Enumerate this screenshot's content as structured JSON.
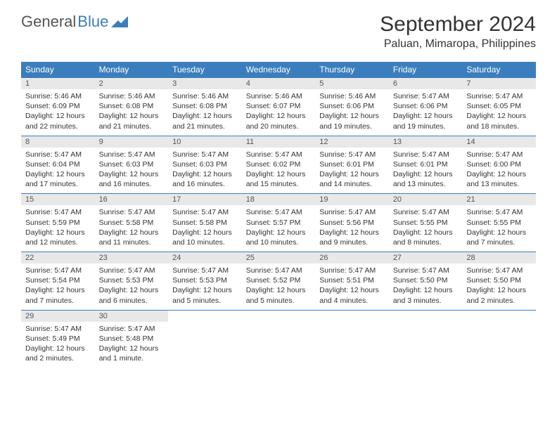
{
  "logo": {
    "text1": "General",
    "text2": "Blue"
  },
  "title": "September 2024",
  "location": "Paluan, Mimaropa, Philippines",
  "colors": {
    "header_bg": "#3b7ebd",
    "header_text": "#ffffff",
    "daynum_bg": "#e8e8e8",
    "text": "#333333",
    "border": "#3b7ebd"
  },
  "weekdays": [
    "Sunday",
    "Monday",
    "Tuesday",
    "Wednesday",
    "Thursday",
    "Friday",
    "Saturday"
  ],
  "weeks": [
    [
      {
        "n": "1",
        "sr": "Sunrise: 5:46 AM",
        "ss": "Sunset: 6:09 PM",
        "d1": "Daylight: 12 hours",
        "d2": "and 22 minutes."
      },
      {
        "n": "2",
        "sr": "Sunrise: 5:46 AM",
        "ss": "Sunset: 6:08 PM",
        "d1": "Daylight: 12 hours",
        "d2": "and 21 minutes."
      },
      {
        "n": "3",
        "sr": "Sunrise: 5:46 AM",
        "ss": "Sunset: 6:08 PM",
        "d1": "Daylight: 12 hours",
        "d2": "and 21 minutes."
      },
      {
        "n": "4",
        "sr": "Sunrise: 5:46 AM",
        "ss": "Sunset: 6:07 PM",
        "d1": "Daylight: 12 hours",
        "d2": "and 20 minutes."
      },
      {
        "n": "5",
        "sr": "Sunrise: 5:46 AM",
        "ss": "Sunset: 6:06 PM",
        "d1": "Daylight: 12 hours",
        "d2": "and 19 minutes."
      },
      {
        "n": "6",
        "sr": "Sunrise: 5:47 AM",
        "ss": "Sunset: 6:06 PM",
        "d1": "Daylight: 12 hours",
        "d2": "and 19 minutes."
      },
      {
        "n": "7",
        "sr": "Sunrise: 5:47 AM",
        "ss": "Sunset: 6:05 PM",
        "d1": "Daylight: 12 hours",
        "d2": "and 18 minutes."
      }
    ],
    [
      {
        "n": "8",
        "sr": "Sunrise: 5:47 AM",
        "ss": "Sunset: 6:04 PM",
        "d1": "Daylight: 12 hours",
        "d2": "and 17 minutes."
      },
      {
        "n": "9",
        "sr": "Sunrise: 5:47 AM",
        "ss": "Sunset: 6:03 PM",
        "d1": "Daylight: 12 hours",
        "d2": "and 16 minutes."
      },
      {
        "n": "10",
        "sr": "Sunrise: 5:47 AM",
        "ss": "Sunset: 6:03 PM",
        "d1": "Daylight: 12 hours",
        "d2": "and 16 minutes."
      },
      {
        "n": "11",
        "sr": "Sunrise: 5:47 AM",
        "ss": "Sunset: 6:02 PM",
        "d1": "Daylight: 12 hours",
        "d2": "and 15 minutes."
      },
      {
        "n": "12",
        "sr": "Sunrise: 5:47 AM",
        "ss": "Sunset: 6:01 PM",
        "d1": "Daylight: 12 hours",
        "d2": "and 14 minutes."
      },
      {
        "n": "13",
        "sr": "Sunrise: 5:47 AM",
        "ss": "Sunset: 6:01 PM",
        "d1": "Daylight: 12 hours",
        "d2": "and 13 minutes."
      },
      {
        "n": "14",
        "sr": "Sunrise: 5:47 AM",
        "ss": "Sunset: 6:00 PM",
        "d1": "Daylight: 12 hours",
        "d2": "and 13 minutes."
      }
    ],
    [
      {
        "n": "15",
        "sr": "Sunrise: 5:47 AM",
        "ss": "Sunset: 5:59 PM",
        "d1": "Daylight: 12 hours",
        "d2": "and 12 minutes."
      },
      {
        "n": "16",
        "sr": "Sunrise: 5:47 AM",
        "ss": "Sunset: 5:58 PM",
        "d1": "Daylight: 12 hours",
        "d2": "and 11 minutes."
      },
      {
        "n": "17",
        "sr": "Sunrise: 5:47 AM",
        "ss": "Sunset: 5:58 PM",
        "d1": "Daylight: 12 hours",
        "d2": "and 10 minutes."
      },
      {
        "n": "18",
        "sr": "Sunrise: 5:47 AM",
        "ss": "Sunset: 5:57 PM",
        "d1": "Daylight: 12 hours",
        "d2": "and 10 minutes."
      },
      {
        "n": "19",
        "sr": "Sunrise: 5:47 AM",
        "ss": "Sunset: 5:56 PM",
        "d1": "Daylight: 12 hours",
        "d2": "and 9 minutes."
      },
      {
        "n": "20",
        "sr": "Sunrise: 5:47 AM",
        "ss": "Sunset: 5:55 PM",
        "d1": "Daylight: 12 hours",
        "d2": "and 8 minutes."
      },
      {
        "n": "21",
        "sr": "Sunrise: 5:47 AM",
        "ss": "Sunset: 5:55 PM",
        "d1": "Daylight: 12 hours",
        "d2": "and 7 minutes."
      }
    ],
    [
      {
        "n": "22",
        "sr": "Sunrise: 5:47 AM",
        "ss": "Sunset: 5:54 PM",
        "d1": "Daylight: 12 hours",
        "d2": "and 7 minutes."
      },
      {
        "n": "23",
        "sr": "Sunrise: 5:47 AM",
        "ss": "Sunset: 5:53 PM",
        "d1": "Daylight: 12 hours",
        "d2": "and 6 minutes."
      },
      {
        "n": "24",
        "sr": "Sunrise: 5:47 AM",
        "ss": "Sunset: 5:53 PM",
        "d1": "Daylight: 12 hours",
        "d2": "and 5 minutes."
      },
      {
        "n": "25",
        "sr": "Sunrise: 5:47 AM",
        "ss": "Sunset: 5:52 PM",
        "d1": "Daylight: 12 hours",
        "d2": "and 5 minutes."
      },
      {
        "n": "26",
        "sr": "Sunrise: 5:47 AM",
        "ss": "Sunset: 5:51 PM",
        "d1": "Daylight: 12 hours",
        "d2": "and 4 minutes."
      },
      {
        "n": "27",
        "sr": "Sunrise: 5:47 AM",
        "ss": "Sunset: 5:50 PM",
        "d1": "Daylight: 12 hours",
        "d2": "and 3 minutes."
      },
      {
        "n": "28",
        "sr": "Sunrise: 5:47 AM",
        "ss": "Sunset: 5:50 PM",
        "d1": "Daylight: 12 hours",
        "d2": "and 2 minutes."
      }
    ],
    [
      {
        "n": "29",
        "sr": "Sunrise: 5:47 AM",
        "ss": "Sunset: 5:49 PM",
        "d1": "Daylight: 12 hours",
        "d2": "and 2 minutes."
      },
      {
        "n": "30",
        "sr": "Sunrise: 5:47 AM",
        "ss": "Sunset: 5:48 PM",
        "d1": "Daylight: 12 hours",
        "d2": "and 1 minute."
      },
      null,
      null,
      null,
      null,
      null
    ]
  ]
}
